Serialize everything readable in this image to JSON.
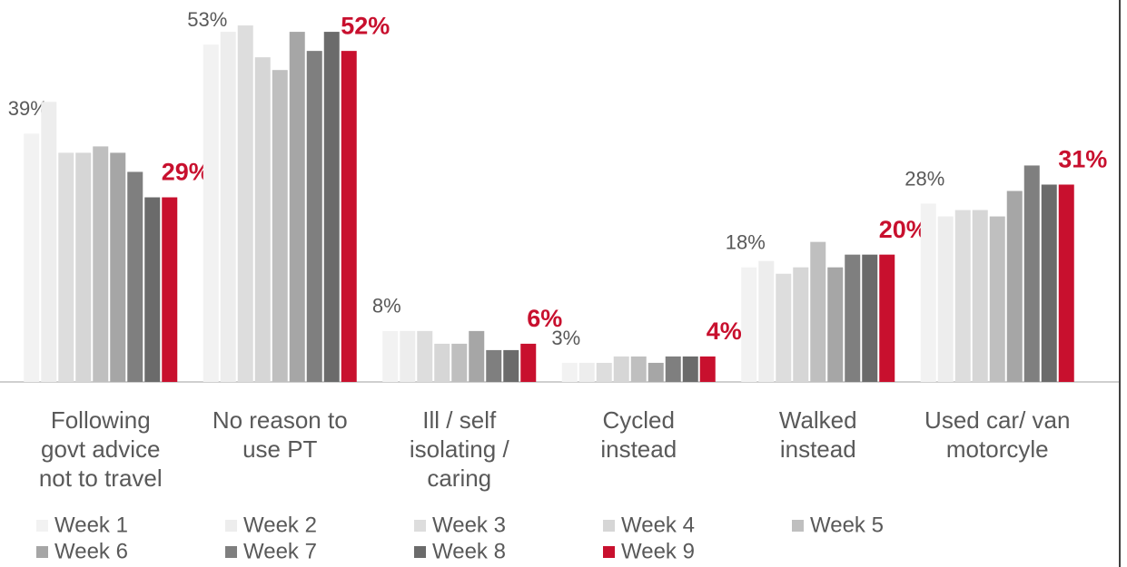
{
  "chart_data": {
    "type": "bar",
    "categories": [
      [
        "Following",
        "govt advice",
        "not to travel"
      ],
      [
        "No reason to",
        "use PT"
      ],
      [
        "Ill / self",
        "isolating /",
        "caring"
      ],
      [
        "Cycled",
        "instead"
      ],
      [
        "Walked",
        "instead"
      ],
      [
        "Used car/ van",
        "motorcyle"
      ]
    ],
    "ylim": [
      0,
      60
    ],
    "series": [
      {
        "name": "Week 1",
        "color": "#f2f2f2",
        "values": [
          39,
          53,
          8,
          3,
          18,
          28
        ],
        "value_labels": [
          "39%",
          "53%",
          "8%",
          "3%",
          "18%",
          "28%"
        ]
      },
      {
        "name": "Week 2",
        "color": "#ededed",
        "values": [
          44,
          55,
          8,
          3,
          19,
          26
        ]
      },
      {
        "name": "Week 3",
        "color": "#dddddd",
        "values": [
          36,
          56,
          8,
          3,
          17,
          27
        ]
      },
      {
        "name": "Week 4",
        "color": "#d6d6d6",
        "values": [
          36,
          51,
          6,
          4,
          18,
          27
        ]
      },
      {
        "name": "Week 5",
        "color": "#bfbfbf",
        "values": [
          37,
          49,
          6,
          4,
          22,
          26
        ]
      },
      {
        "name": "Week 6",
        "color": "#a6a6a6",
        "values": [
          36,
          55,
          8,
          3,
          18,
          30
        ]
      },
      {
        "name": "Week 7",
        "color": "#7f7f7f",
        "values": [
          33,
          52,
          5,
          4,
          20,
          34
        ]
      },
      {
        "name": "Week 8",
        "color": "#6b6b6b",
        "values": [
          29,
          55,
          5,
          4,
          20,
          31
        ]
      },
      {
        "name": "Week 9",
        "color": "#c8102e",
        "values": [
          29,
          52,
          6,
          4,
          20,
          31
        ],
        "value_labels": [
          "29%",
          "52%",
          "6%",
          "4%",
          "20%",
          "31%"
        ]
      }
    ]
  }
}
